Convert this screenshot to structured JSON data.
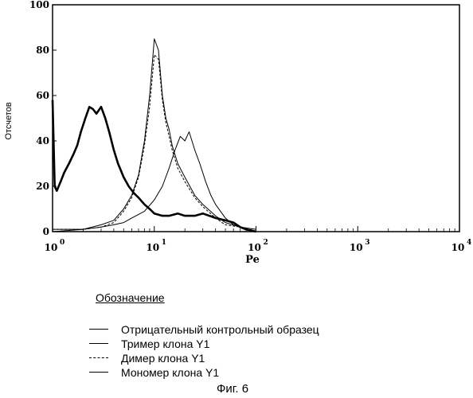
{
  "chart_data": {
    "type": "line",
    "ylabel": "Отсчетов",
    "xlabel": "Pe",
    "x_scale": "log",
    "xlim": [
      1,
      10000
    ],
    "ylim": [
      0,
      100
    ],
    "yticks": [
      0,
      20,
      40,
      60,
      80,
      100
    ],
    "xticks": [
      {
        "base": "10",
        "exp": "0",
        "value": 1
      },
      {
        "base": "10",
        "exp": "1",
        "value": 10
      },
      {
        "base": "10",
        "exp": "2",
        "value": 100
      },
      {
        "base": "10",
        "exp": "3",
        "value": 1000
      },
      {
        "base": "10",
        "exp": "4",
        "value": 10000
      }
    ],
    "grid": false,
    "series": [
      {
        "name": "Отрицательный контрольный образец",
        "style": "thick",
        "x": [
          1,
          1.05,
          1.1,
          1.2,
          1.3,
          1.45,
          1.6,
          1.75,
          1.9,
          2.1,
          2.3,
          2.5,
          2.7,
          3.0,
          3.3,
          3.6,
          4.0,
          4.4,
          5.0,
          5.6,
          6.3,
          7.0,
          8.0,
          9.0,
          10,
          12,
          14,
          17,
          20,
          25,
          30,
          40,
          50,
          60,
          70,
          80,
          100
        ],
        "y": [
          58,
          20,
          18,
          22,
          26,
          30,
          34,
          38,
          44,
          50,
          55,
          54,
          52,
          55,
          50,
          44,
          36,
          30,
          24,
          20,
          17,
          15,
          12,
          10,
          8,
          7,
          7,
          8,
          7,
          7,
          8,
          6,
          5,
          4,
          2,
          1,
          0
        ]
      },
      {
        "name": "Тример клона Y1",
        "style": "thin",
        "x": [
          1,
          2,
          3,
          4,
          5,
          6,
          7,
          8,
          9,
          10,
          11,
          12,
          13,
          14,
          15,
          17,
          20,
          25,
          30,
          40,
          50,
          70,
          100
        ],
        "y": [
          1,
          1,
          3,
          5,
          10,
          16,
          25,
          40,
          60,
          85,
          80,
          60,
          50,
          45,
          38,
          30,
          24,
          16,
          12,
          7,
          4,
          2,
          1
        ]
      },
      {
        "name": "Димер клона Y1",
        "style": "dashed",
        "x": [
          1,
          2,
          3,
          4,
          5,
          6,
          7,
          8,
          9,
          10,
          11,
          12,
          13,
          14,
          15,
          17,
          20,
          25,
          30,
          40,
          50,
          70,
          100
        ],
        "y": [
          1,
          1,
          2,
          4,
          9,
          15,
          24,
          38,
          55,
          78,
          76,
          58,
          48,
          42,
          36,
          28,
          22,
          15,
          11,
          6,
          3,
          2,
          0
        ]
      },
      {
        "name": "Мономер клона Y1",
        "style": "thin",
        "x": [
          1,
          2,
          3,
          4,
          5,
          6,
          8,
          10,
          12,
          14,
          16,
          18,
          20,
          22,
          25,
          28,
          32,
          36,
          40,
          50,
          60,
          80,
          100
        ],
        "y": [
          0,
          1,
          2,
          3,
          4,
          6,
          9,
          14,
          20,
          28,
          36,
          42,
          40,
          44,
          36,
          30,
          22,
          16,
          12,
          6,
          3,
          1,
          0
        ]
      }
    ]
  },
  "legend": {
    "title": "Обозначение",
    "items": [
      {
        "label": "Отрицательный контрольный образец",
        "style": "solid"
      },
      {
        "label": "Тример клона Y1",
        "style": "solid"
      },
      {
        "label": "Димер клона Y1",
        "style": "dashed"
      },
      {
        "label": "Мономер клона Y1",
        "style": "solid"
      }
    ]
  },
  "caption": "Фиг. 6"
}
